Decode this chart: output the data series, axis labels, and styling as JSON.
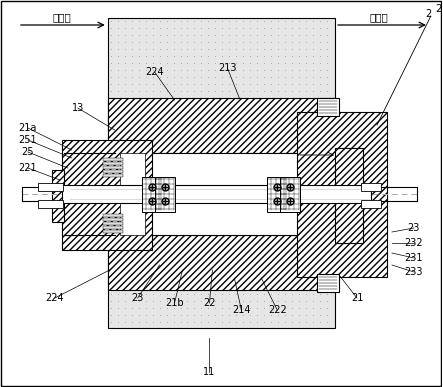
{
  "background_color": "#ffffff",
  "label_wenxiangnei": "温箱内",
  "label_wenxiangwai": "温箱外",
  "font_size": 7.5,
  "fig_width": 4.43,
  "fig_height": 3.87,
  "labels": [
    [
      "2",
      430,
      14
    ],
    [
      "21a",
      28,
      128
    ],
    [
      "13",
      78,
      108
    ],
    [
      "251",
      28,
      140
    ],
    [
      "25",
      28,
      152
    ],
    [
      "221",
      28,
      168
    ],
    [
      "224",
      155,
      72
    ],
    [
      "213",
      228,
      68
    ],
    [
      "23",
      138,
      298
    ],
    [
      "21b",
      175,
      303
    ],
    [
      "22",
      210,
      303
    ],
    [
      "214",
      242,
      310
    ],
    [
      "222",
      278,
      310
    ],
    [
      "224",
      55,
      298
    ],
    [
      "21",
      358,
      298
    ],
    [
      "23",
      415,
      228
    ],
    [
      "232",
      415,
      243
    ],
    [
      "231",
      415,
      258
    ],
    [
      "233",
      415,
      272
    ],
    [
      "11",
      210,
      372
    ]
  ],
  "leader_lines": [
    [
      28,
      128,
      72,
      150
    ],
    [
      78,
      108,
      115,
      130
    ],
    [
      28,
      140,
      72,
      158
    ],
    [
      28,
      152,
      68,
      168
    ],
    [
      28,
      168,
      60,
      180
    ],
    [
      155,
      72,
      175,
      100
    ],
    [
      228,
      68,
      240,
      98
    ],
    [
      138,
      298,
      160,
      265
    ],
    [
      175,
      303,
      183,
      270
    ],
    [
      210,
      303,
      213,
      270
    ],
    [
      242,
      310,
      235,
      278
    ],
    [
      278,
      310,
      262,
      278
    ],
    [
      55,
      298,
      110,
      270
    ],
    [
      358,
      298,
      340,
      275
    ],
    [
      415,
      228,
      393,
      232
    ],
    [
      415,
      243,
      393,
      243
    ],
    [
      415,
      258,
      393,
      253
    ],
    [
      415,
      272,
      393,
      265
    ],
    [
      210,
      372,
      210,
      338
    ]
  ]
}
